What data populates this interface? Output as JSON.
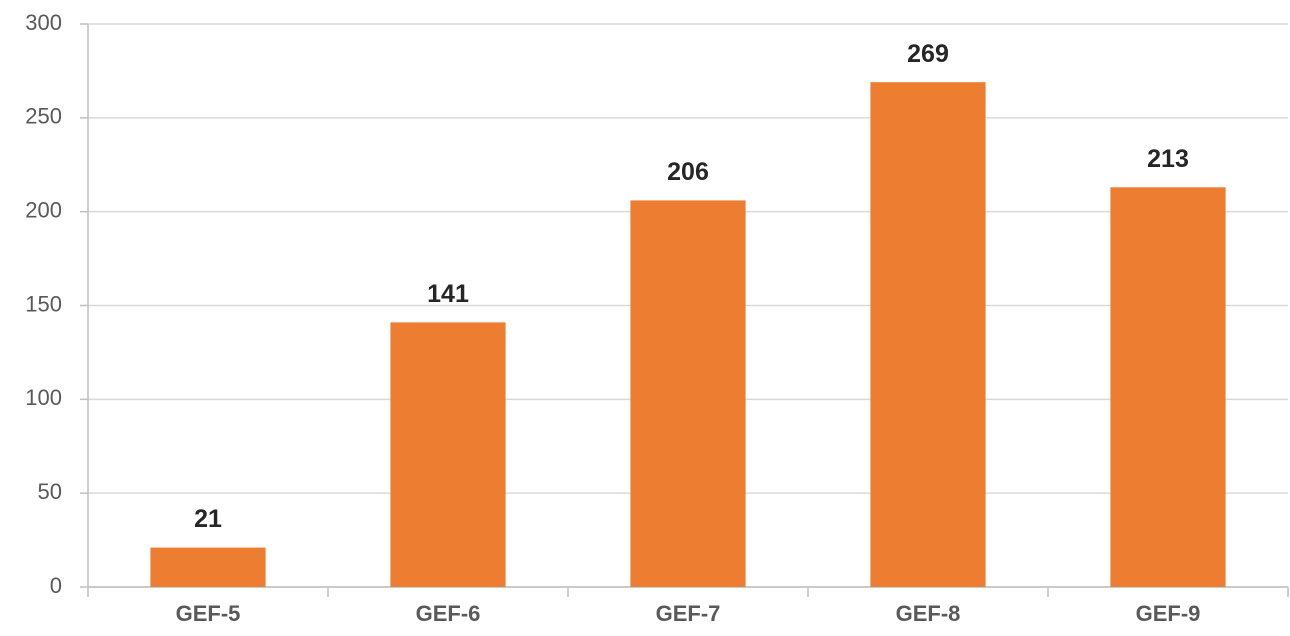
{
  "chart_data": {
    "type": "bar",
    "categories": [
      "GEF-5",
      "GEF-6",
      "GEF-7",
      "GEF-8",
      "GEF-9"
    ],
    "values": [
      21,
      141,
      206,
      269,
      213
    ],
    "color": "#ed7d31",
    "ylim": [
      0,
      300
    ],
    "yticks": [
      0,
      50,
      100,
      150,
      200,
      250,
      300
    ],
    "grid": true
  }
}
